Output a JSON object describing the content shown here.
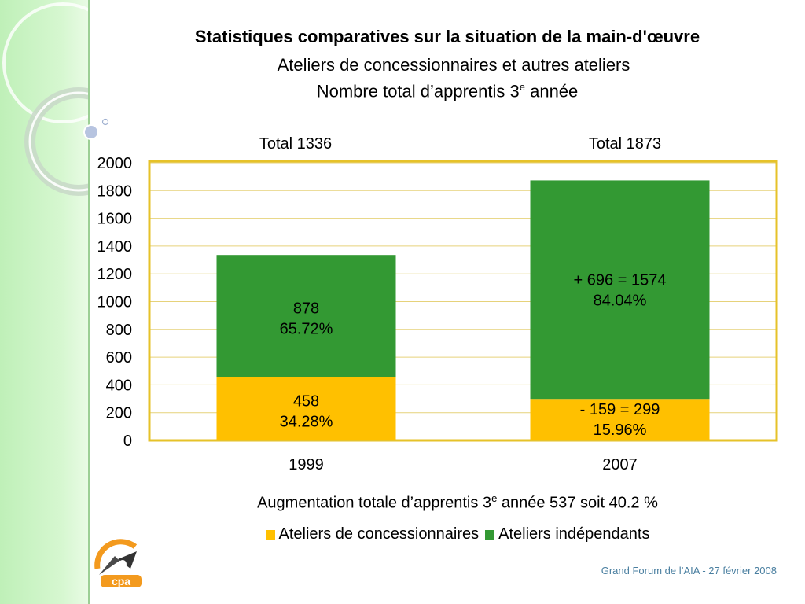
{
  "title": {
    "line1": "Statistiques comparatives sur la situation de la main-d'œuvre",
    "line2": "Ateliers de concessionnaires et autres ateliers",
    "line3_pre": "Nombre total d’apprentis 3",
    "line3_sup": "e",
    "line3_post": " année"
  },
  "totals": [
    {
      "word": "Total",
      "value": "1336"
    },
    {
      "word": "Total",
      "value": "1873"
    }
  ],
  "augmentation": {
    "pre": "Augmentation totale d’apprentis 3",
    "sup": "e",
    "post": " année 537 soit 40.2 %"
  },
  "footer": "Grand Forum de l’AIA -  27 février 2008",
  "colors": {
    "concessionnaires": "#ffc000",
    "independants": "#339933",
    "frame": "#e6c229",
    "grid": "#e6d27a"
  },
  "chart_data": {
    "type": "bar",
    "stacked": true,
    "categories": [
      "1999",
      "2007"
    ],
    "ylim": [
      0,
      2000
    ],
    "yticks": [
      0,
      200,
      400,
      600,
      800,
      1000,
      1200,
      1400,
      1600,
      1800,
      2000
    ],
    "grid": true,
    "legend_position": "bottom",
    "series": [
      {
        "name": "Ateliers de concessionnaires",
        "values": [
          458,
          299
        ],
        "labels": [
          [
            "458",
            "34.28%"
          ],
          [
            "- 159 = 299",
            "15.96%"
          ]
        ]
      },
      {
        "name": "Ateliers indépendants",
        "values": [
          878,
          1574
        ],
        "labels": [
          [
            "878",
            "65.72%"
          ],
          [
            "+ 696 = 1574",
            "84.04%"
          ]
        ]
      }
    ]
  }
}
